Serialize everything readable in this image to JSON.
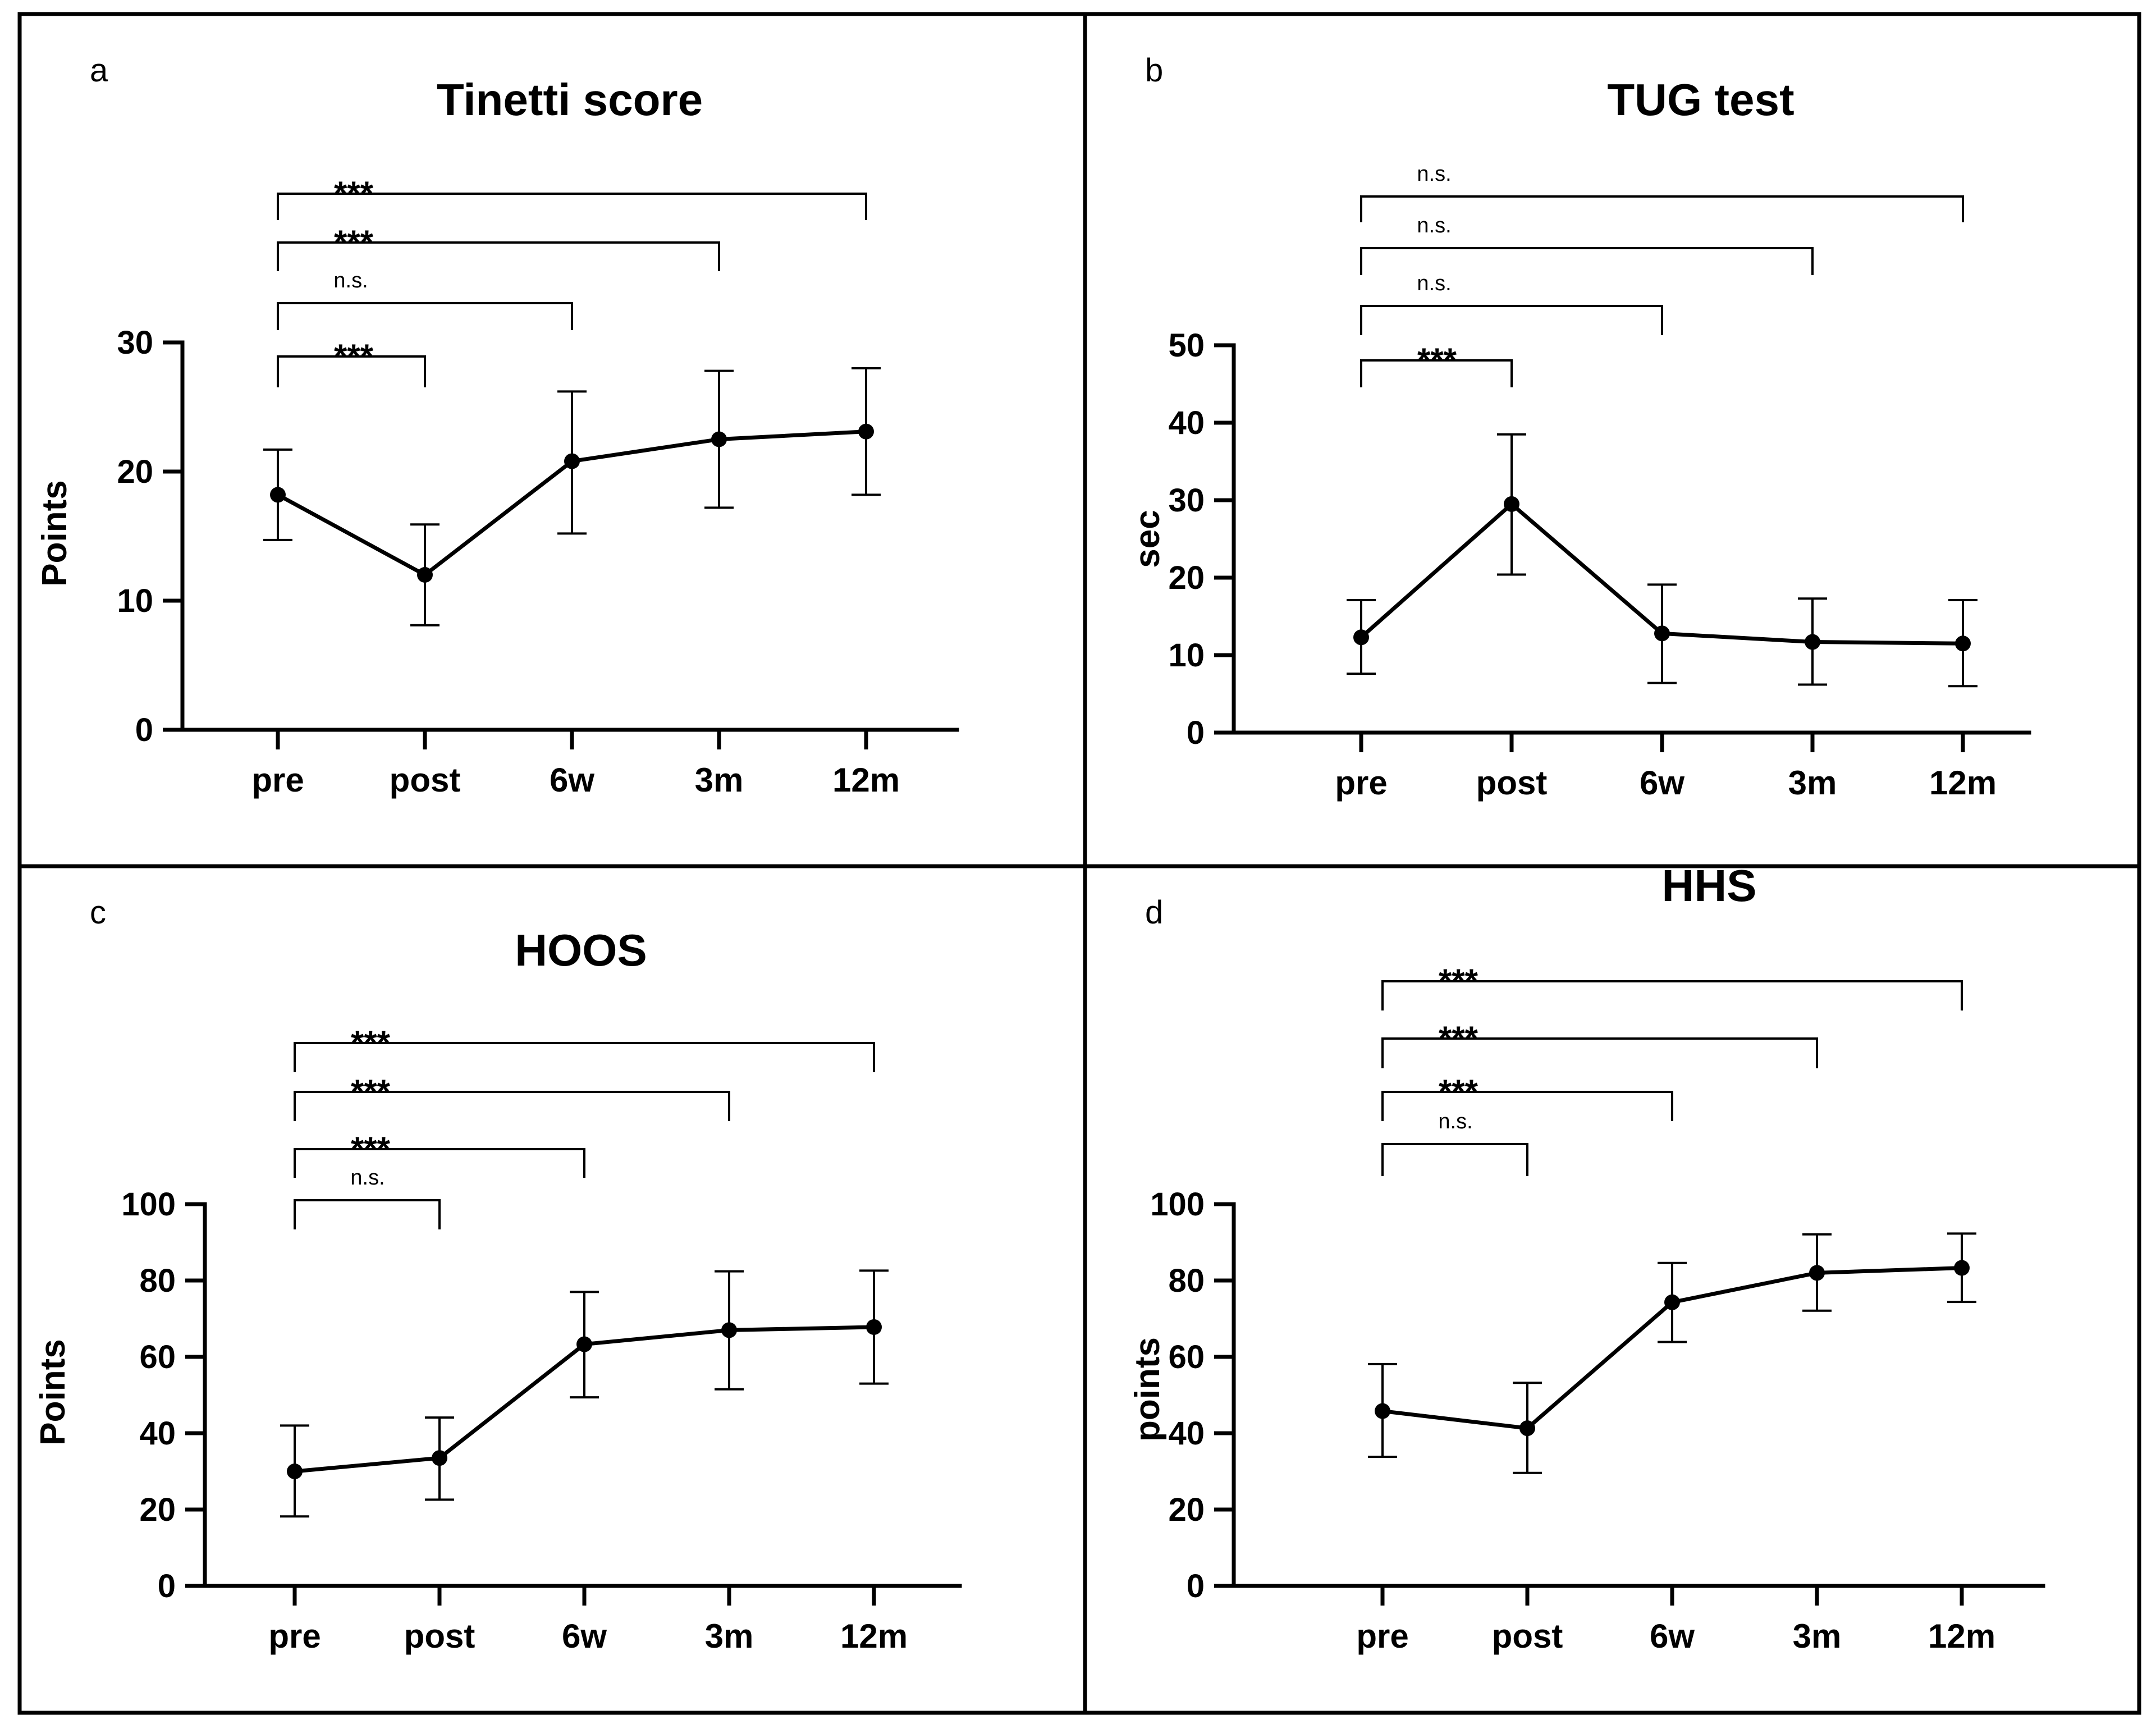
{
  "chart_data": [
    {
      "type": "line",
      "letter": "a",
      "title": "Tinetti score",
      "xlabel": "",
      "ylabel": "Points",
      "categories": [
        "pre",
        "post",
        "6w",
        "3m",
        "12m"
      ],
      "values": [
        18.2,
        12.0,
        20.8,
        22.5,
        23.1
      ],
      "err_low": [
        14.7,
        8.1,
        15.2,
        17.2,
        18.2
      ],
      "err_high": [
        21.7,
        15.9,
        26.2,
        27.8,
        28.0
      ],
      "ylim": [
        0,
        30
      ],
      "yticks": [
        "0",
        "10",
        "20",
        "30"
      ],
      "significance": [
        {
          "from": "pre",
          "to": "post",
          "label": "***"
        },
        {
          "from": "pre",
          "to": "6w",
          "label": "n.s."
        },
        {
          "from": "pre",
          "to": "3m",
          "label": "***"
        },
        {
          "from": "pre",
          "to": "12m",
          "label": "***"
        }
      ]
    },
    {
      "type": "line",
      "letter": "b",
      "title": "TUG test",
      "xlabel": "",
      "ylabel": "sec",
      "categories": [
        "pre",
        "post",
        "6w",
        "3m",
        "12m"
      ],
      "values": [
        12.3,
        29.5,
        12.8,
        11.7,
        11.5
      ],
      "err_low": [
        7.6,
        20.4,
        6.4,
        6.2,
        6.0
      ],
      "err_high": [
        17.1,
        38.5,
        19.1,
        17.3,
        17.1
      ],
      "ylim": [
        0,
        50
      ],
      "yticks": [
        "0",
        "10",
        "20",
        "30",
        "40",
        "50"
      ],
      "significance": [
        {
          "from": "pre",
          "to": "post",
          "label": "***"
        },
        {
          "from": "pre",
          "to": "6w",
          "label": "n.s."
        },
        {
          "from": "pre",
          "to": "3m",
          "label": "n.s."
        },
        {
          "from": "pre",
          "to": "12m",
          "label": "n.s."
        }
      ]
    },
    {
      "type": "line",
      "letter": "c",
      "title": "HOOS",
      "xlabel": "",
      "ylabel": "Points",
      "categories": [
        "pre",
        "post",
        "6w",
        "3m",
        "12m"
      ],
      "values": [
        30,
        33.5,
        63.3,
        67,
        67.8
      ],
      "err_low": [
        18.2,
        22.6,
        49.4,
        51.5,
        53.0
      ],
      "err_high": [
        42.0,
        44.1,
        77.0,
        82.4,
        82.6
      ],
      "ylim": [
        0,
        100
      ],
      "yticks": [
        "0",
        "20",
        "40",
        "60",
        "80",
        "100"
      ],
      "significance": [
        {
          "from": "pre",
          "to": "post",
          "label": "n.s."
        },
        {
          "from": "pre",
          "to": "6w",
          "label": "***"
        },
        {
          "from": "pre",
          "to": "3m",
          "label": "***"
        },
        {
          "from": "pre",
          "to": "12m",
          "label": "***"
        }
      ]
    },
    {
      "type": "line",
      "letter": "d",
      "title": "HHS",
      "xlabel": "",
      "ylabel": "points",
      "categories": [
        "pre",
        "post",
        "6w",
        "3m",
        "12m"
      ],
      "values": [
        45.8,
        41.3,
        74.3,
        82,
        83.3
      ],
      "err_low": [
        33.8,
        29.6,
        63.9,
        72.1,
        74.4
      ],
      "err_high": [
        58.1,
        53.2,
        84.6,
        92.1,
        92.3
      ],
      "ylim": [
        0,
        100
      ],
      "yticks": [
        "0",
        "20",
        "40",
        "60",
        "80",
        "100"
      ],
      "significance": [
        {
          "from": "pre",
          "to": "post",
          "label": "n.s."
        },
        {
          "from": "pre",
          "to": "6w",
          "label": "***"
        },
        {
          "from": "pre",
          "to": "3m",
          "label": "***"
        },
        {
          "from": "pre",
          "to": "12m",
          "label": "***"
        }
      ]
    }
  ]
}
